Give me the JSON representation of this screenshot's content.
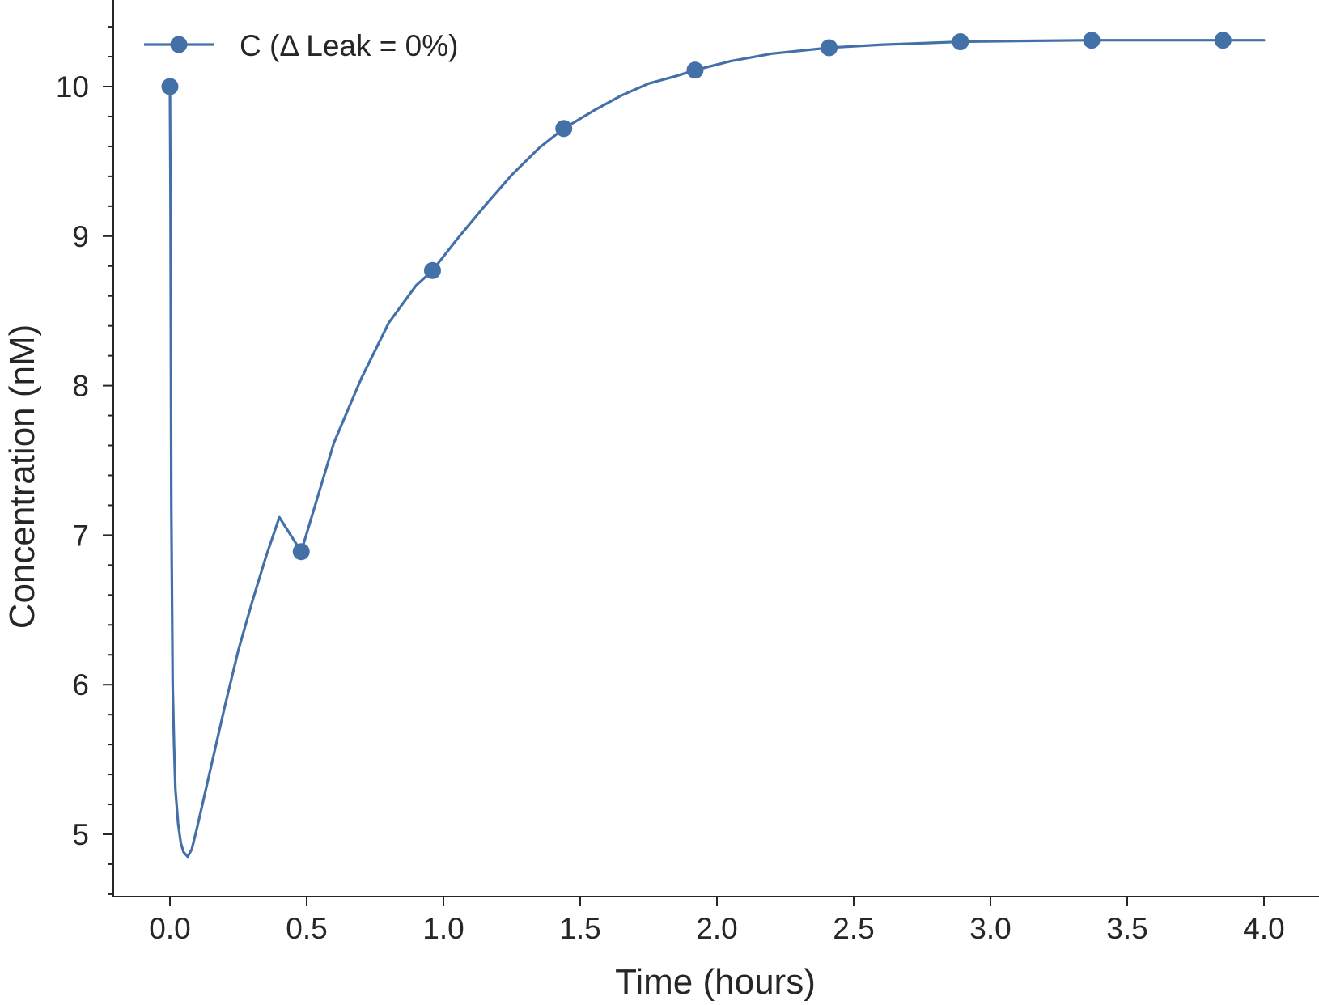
{
  "chart_data": {
    "type": "line",
    "title": "",
    "xlabel": "Time (hours)",
    "ylabel": "Concentration (nM)",
    "xlim": [
      -0.2,
      4.2
    ],
    "ylim": [
      4.6,
      10.55
    ],
    "x_ticks": [
      0.0,
      0.5,
      1.0,
      1.5,
      2.0,
      2.5,
      3.0,
      3.5,
      4.0
    ],
    "x_tick_labels": [
      "0.0",
      "0.5",
      "1.0",
      "1.5",
      "2.0",
      "2.5",
      "3.0",
      "3.5",
      "4.0"
    ],
    "y_ticks": [
      5,
      6,
      7,
      8,
      9,
      10
    ],
    "y_tick_labels": [
      "5",
      "6",
      "7",
      "8",
      "9",
      "10"
    ],
    "y_minor_step": 0.2,
    "grid": false,
    "legend_position": "top-left",
    "series": [
      {
        "name": "C (Δ Leak = 0%)",
        "color": "#4470a8",
        "marker": "circle",
        "curve": {
          "x": [
            0.0,
            0.002,
            0.005,
            0.01,
            0.015,
            0.02,
            0.03,
            0.04,
            0.05,
            0.065,
            0.08,
            0.1,
            0.15,
            0.2,
            0.25,
            0.3,
            0.35,
            0.4,
            0.48,
            0.6,
            0.7,
            0.8,
            0.9,
            0.96,
            1.05,
            1.15,
            1.25,
            1.35,
            1.44,
            1.55,
            1.65,
            1.75,
            1.85,
            1.92,
            2.05,
            2.2,
            2.41,
            2.6,
            2.89,
            3.1,
            3.37,
            3.6,
            3.85,
            4.0
          ],
          "y": [
            10.0,
            9.3,
            7.2,
            6.0,
            5.6,
            5.3,
            5.07,
            4.94,
            4.88,
            4.85,
            4.9,
            5.05,
            5.45,
            5.85,
            6.23,
            6.55,
            6.85,
            7.12,
            6.89,
            7.62,
            8.05,
            8.42,
            8.67,
            8.77,
            8.98,
            9.2,
            9.41,
            9.59,
            9.72,
            9.84,
            9.94,
            10.02,
            10.07,
            10.11,
            10.17,
            10.22,
            10.26,
            10.28,
            10.3,
            10.305,
            10.31,
            10.31,
            10.31,
            10.31
          ]
        },
        "points": {
          "x": [
            0.0,
            0.48,
            0.96,
            1.44,
            1.92,
            2.41,
            2.89,
            3.37,
            3.85
          ],
          "y": [
            10.0,
            6.89,
            8.77,
            9.72,
            10.11,
            10.26,
            10.3,
            10.31,
            10.31
          ]
        }
      }
    ]
  }
}
